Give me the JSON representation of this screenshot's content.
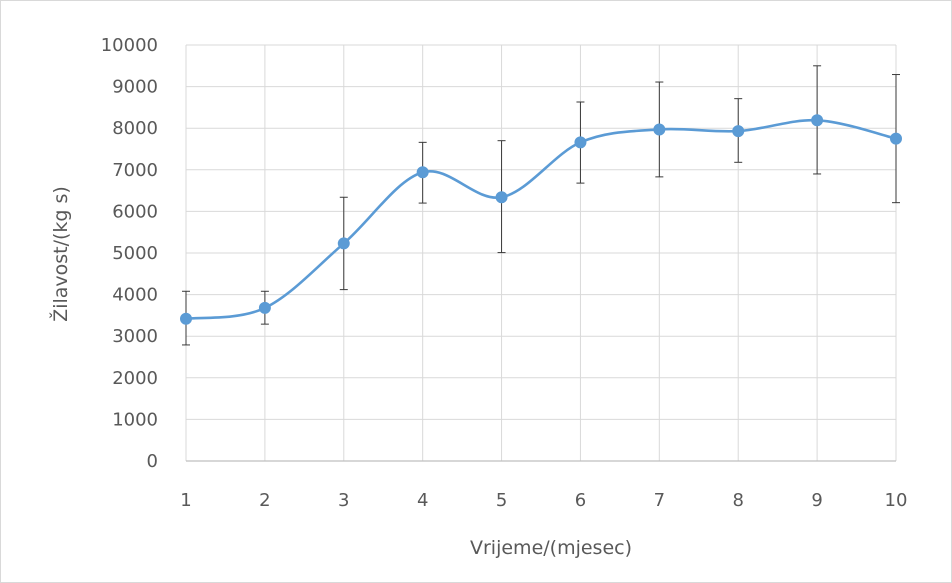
{
  "chart_data": {
    "type": "line",
    "xlabel": "Vrijeme/(mjesec)",
    "ylabel": "Žilavost/(kg s)",
    "xlim": [
      1,
      10
    ],
    "ylim": [
      0,
      10000
    ],
    "x_ticks": [
      "1",
      "2",
      "3",
      "4",
      "5",
      "6",
      "7",
      "8",
      "9",
      "10"
    ],
    "y_ticks": [
      "0",
      "1000",
      "2000",
      "3000",
      "4000",
      "5000",
      "6000",
      "7000",
      "8000",
      "9000",
      "10000"
    ],
    "grid": true,
    "smooth": true,
    "legend": "none",
    "colors": {
      "series": "#5b9bd5",
      "error_bar": "#3a3a3a",
      "grid": "#d9d9d9",
      "axis": "#bfbfbf"
    },
    "series": [
      {
        "x": [
          1,
          2,
          3,
          4,
          5,
          6,
          7,
          8,
          9,
          10
        ],
        "y": [
          3420,
          3680,
          5230,
          6940,
          6340,
          7660,
          7970,
          7930,
          8190,
          7750
        ],
        "error_low": [
          2790,
          3290,
          4120,
          6200,
          5010,
          6680,
          6830,
          7180,
          6900,
          6210
        ],
        "error_high": [
          4080,
          4080,
          6340,
          7660,
          7700,
          8630,
          9110,
          8710,
          9500,
          9290
        ]
      }
    ]
  }
}
